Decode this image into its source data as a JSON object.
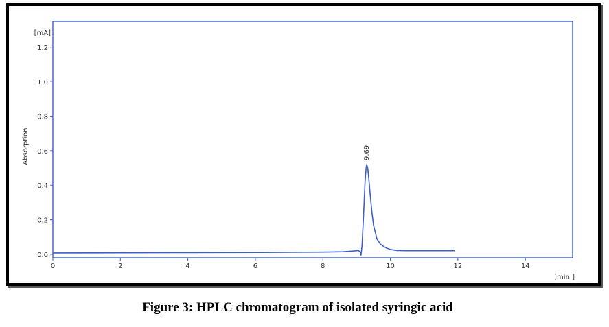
{
  "caption": "Figure 3: HPLC chromatogram of isolated syringic acid",
  "colors": {
    "trace": "#3a5fcd",
    "frame": "#3a5fcd",
    "text": "#333333"
  },
  "chart_data": {
    "type": "line",
    "title": "",
    "xlabel": "[min.]",
    "ylabel": "Absorption",
    "yunit": "[mA]",
    "xlim": [
      0,
      15.4
    ],
    "ylim": [
      -0.02,
      1.35
    ],
    "x_ticks": [
      0,
      2,
      4,
      6,
      8,
      10,
      12,
      14
    ],
    "y_ticks": [
      0.0,
      0.2,
      0.4,
      0.6,
      0.8,
      1.0,
      1.2
    ],
    "y_tick_labels": [
      "0.0",
      "0.2",
      "0.4",
      "0.6",
      "0.8",
      "1.0",
      "1.2"
    ],
    "grid": false,
    "series": [
      {
        "x": [
          0,
          2,
          4,
          6,
          7,
          8,
          8.6,
          8.95,
          9.05,
          9.1,
          9.13,
          9.16,
          9.2,
          9.25,
          9.28,
          9.3,
          9.33,
          9.36,
          9.4,
          9.45,
          9.5,
          9.6,
          9.7,
          9.8,
          9.9,
          10.0,
          10.2,
          10.5,
          11.0,
          11.5,
          11.9
        ],
        "y": [
          0.008,
          0.009,
          0.01,
          0.011,
          0.012,
          0.013,
          0.015,
          0.02,
          0.022,
          0.015,
          -0.005,
          0.05,
          0.2,
          0.42,
          0.5,
          0.52,
          0.5,
          0.44,
          0.35,
          0.25,
          0.17,
          0.09,
          0.06,
          0.045,
          0.035,
          0.028,
          0.022,
          0.021,
          0.021,
          0.021,
          0.021
        ]
      }
    ],
    "annotations": [
      {
        "x": 9.3,
        "text": "9.69"
      }
    ]
  }
}
